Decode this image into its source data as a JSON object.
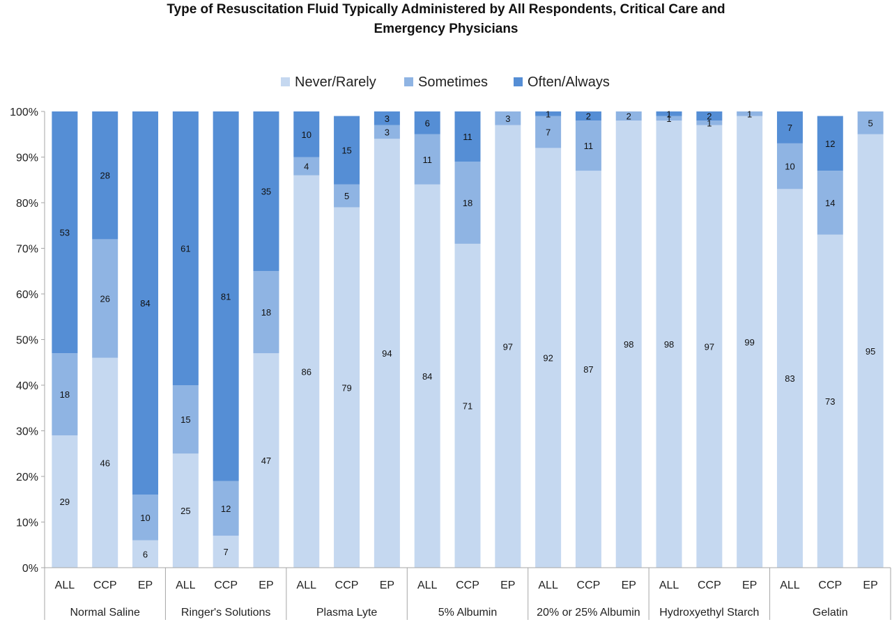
{
  "chart_data": {
    "type": "bar",
    "stacked": true,
    "title": "Type of Resuscitation Fluid Typically Administered by All Respondents, Critical Care and Emergency Physicians",
    "title_lines": [
      "Type of Resuscitation Fluid Typically Administered by All Respondents, Critical Care and",
      "Emergency Physicians"
    ],
    "legend_position": "top",
    "xlabel": "",
    "ylabel": "",
    "ylim": [
      0,
      100
    ],
    "yticks": [
      "0%",
      "10%",
      "20%",
      "30%",
      "40%",
      "50%",
      "60%",
      "70%",
      "80%",
      "90%",
      "100%"
    ],
    "groups": [
      "Normal Saline",
      "Ringer's Solutions",
      "Plasma Lyte",
      "5% Albumin",
      "20% or 25% Albumin",
      "Hydroxyethyl Starch",
      "Gelatin"
    ],
    "subcategories": [
      "ALL",
      "CCP",
      "EP"
    ],
    "series": [
      {
        "name": "Never/Rarely",
        "color": "#c5d8f0",
        "values": [
          [
            29,
            46,
            6
          ],
          [
            25,
            7,
            47
          ],
          [
            86,
            79,
            94
          ],
          [
            84,
            71,
            97
          ],
          [
            92,
            87,
            98
          ],
          [
            98,
            97,
            99
          ],
          [
            83,
            73,
            95
          ]
        ]
      },
      {
        "name": "Sometimes",
        "color": "#8fb4e3",
        "values": [
          [
            18,
            26,
            10
          ],
          [
            15,
            12,
            18
          ],
          [
            4,
            5,
            3
          ],
          [
            11,
            18,
            3
          ],
          [
            7,
            11,
            2
          ],
          [
            1,
            1,
            1
          ],
          [
            10,
            14,
            5
          ]
        ]
      },
      {
        "name": "Often/Always",
        "color": "#558ed5",
        "values": [
          [
            53,
            28,
            84
          ],
          [
            61,
            81,
            35
          ],
          [
            10,
            15,
            3
          ],
          [
            6,
            11,
            0
          ],
          [
            1,
            2,
            0
          ],
          [
            1,
            2,
            0
          ],
          [
            7,
            12,
            0
          ]
        ]
      }
    ],
    "data_labels": {
      "Never/Rarely": [
        [
          "29",
          "46",
          "6"
        ],
        [
          "25",
          "7",
          "47"
        ],
        [
          "86",
          "79",
          "94"
        ],
        [
          "84",
          "71",
          "97"
        ],
        [
          "92",
          "87",
          "98"
        ],
        [
          "98",
          "97",
          "99"
        ],
        [
          "83",
          "73",
          "95"
        ]
      ],
      "Sometimes": [
        [
          "18",
          "26",
          "10"
        ],
        [
          "15",
          "12",
          "18"
        ],
        [
          "4",
          "5",
          "3"
        ],
        [
          "11",
          "18",
          "3"
        ],
        [
          "7",
          "11",
          "2"
        ],
        [
          "1",
          "1",
          "1"
        ],
        [
          "10",
          "14",
          "5"
        ]
      ],
      "Often/Always": [
        [
          "53",
          "28",
          "84"
        ],
        [
          "61",
          "81",
          "35"
        ],
        [
          "10",
          "15",
          "3"
        ],
        [
          "6",
          "11",
          ""
        ],
        [
          "1",
          "2",
          ""
        ],
        [
          "1",
          "2",
          ""
        ],
        [
          "7",
          "12",
          ""
        ]
      ]
    },
    "grid": false
  }
}
